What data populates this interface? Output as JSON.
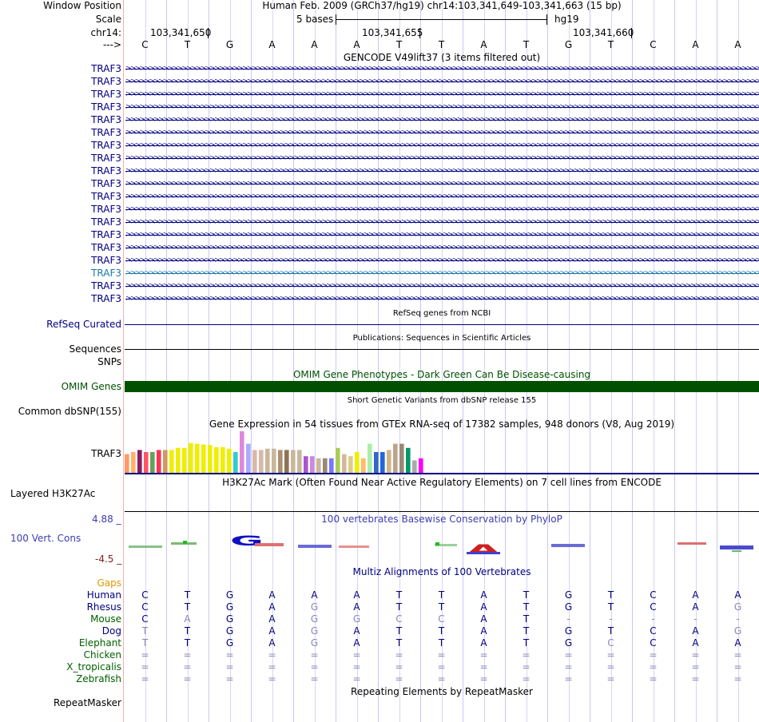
{
  "ruler": {
    "window_position_label": "Window Position",
    "title": "Human Feb. 2009 (GRCh37/hg19)   chr14:103,341,649-103,341,663 (15 bp)",
    "scale_label": "Scale",
    "scale_text": "5 bases",
    "assembly": "hg19",
    "chrom_label": "chr14:",
    "position_ticks": [
      "103,341,650",
      "103,341,655",
      "103,341,660"
    ],
    "strand_label": "--->",
    "bases": [
      "C",
      "T",
      "G",
      "A",
      "A",
      "A",
      "T",
      "T",
      "A",
      "T",
      "G",
      "T",
      "C",
      "A",
      "A"
    ]
  },
  "gencode": {
    "title": "GENCODE V49lift37 (3 items filtered out)",
    "gene_label": "TRAF3",
    "row_count": 19,
    "highlight_row": 16,
    "color": "#000080",
    "highlight_color": "#1a79a8"
  },
  "refseq": {
    "title": "RefSeq genes from NCBI",
    "label": "RefSeq Curated",
    "color": "#000080"
  },
  "publications": {
    "title": "Publications: Sequences in Scientific Articles",
    "label": "Sequences"
  },
  "snps": {
    "label": "SNPs"
  },
  "omim": {
    "title": "OMIM Gene Phenotypes - Dark Green Can Be Disease-causing",
    "label": "OMIM Genes",
    "color": "#005000"
  },
  "dbsnp": {
    "title": "Short Genetic Variants from dbSNP release 155",
    "label": "Common dbSNP(155)"
  },
  "gtex": {
    "title": "Gene Expression in 54 tissues from GTEx RNA-seq of 17382 samples, 948 donors (V8, Aug 2019)",
    "label": "TRAF3",
    "bars": [
      {
        "v": 0.45,
        "c": "#ff9966"
      },
      {
        "v": 0.5,
        "c": "#ffb366"
      },
      {
        "v": 0.55,
        "c": "#8b1c62"
      },
      {
        "v": 0.5,
        "c": "#ff5566"
      },
      {
        "v": 0.5,
        "c": "#66a05a"
      },
      {
        "v": 0.55,
        "c": "#ff3355"
      },
      {
        "v": 0.55,
        "c": "#cd9b5e"
      },
      {
        "v": 0.55,
        "c": "#eeee00"
      },
      {
        "v": 0.6,
        "c": "#eeee00"
      },
      {
        "v": 0.6,
        "c": "#eeee00"
      },
      {
        "v": 0.72,
        "c": "#eeee00"
      },
      {
        "v": 0.7,
        "c": "#eeee00"
      },
      {
        "v": 0.68,
        "c": "#eeee00"
      },
      {
        "v": 0.67,
        "c": "#eeee00"
      },
      {
        "v": 0.62,
        "c": "#eeee00"
      },
      {
        "v": 0.62,
        "c": "#eeee00"
      },
      {
        "v": 0.58,
        "c": "#eeee00"
      },
      {
        "v": 0.5,
        "c": "#33cccc"
      },
      {
        "v": 1.0,
        "c": "#dd88dd"
      },
      {
        "v": 0.7,
        "c": "#aaaaff"
      },
      {
        "v": 0.55,
        "c": "#d9b8a8"
      },
      {
        "v": 0.55,
        "c": "#d9b8a8"
      },
      {
        "v": 0.58,
        "c": "#c9b79c"
      },
      {
        "v": 0.58,
        "c": "#c9b79c"
      },
      {
        "v": 0.55,
        "c": "#aa9070"
      },
      {
        "v": 0.55,
        "c": "#8b7355"
      },
      {
        "v": 0.55,
        "c": "#c9b79c"
      },
      {
        "v": 0.55,
        "c": "#c9b79c"
      },
      {
        "v": 0.4,
        "c": "#aa55cc"
      },
      {
        "v": 0.4,
        "c": "#cc88dd"
      },
      {
        "v": 0.35,
        "c": "#c8b89c"
      },
      {
        "v": 0.35,
        "c": "#998877"
      },
      {
        "v": 0.35,
        "c": "#7777ff"
      },
      {
        "v": 0.6,
        "c": "#aacc55"
      },
      {
        "v": 0.45,
        "c": "#d4b89c"
      },
      {
        "v": 0.4,
        "c": "#ddcc88"
      },
      {
        "v": 0.5,
        "c": "#eeee00"
      },
      {
        "v": 0.35,
        "c": "#ffbb66"
      },
      {
        "v": 0.7,
        "c": "#aaeeaa"
      },
      {
        "v": 0.5,
        "c": "#3366cc"
      },
      {
        "v": 0.5,
        "c": "#2266dd"
      },
      {
        "v": 0.55,
        "c": "#d2b48c"
      },
      {
        "v": 0.7,
        "c": "#bca48c"
      },
      {
        "v": 0.7,
        "c": "#998877"
      },
      {
        "v": 0.6,
        "c": "#009966"
      },
      {
        "v": 0.3,
        "c": "#aaaaaa"
      },
      {
        "v": 0.35,
        "c": "#ff00ff"
      }
    ]
  },
  "h3k27ac": {
    "title": "H3K27Ac Mark (Often Found Near Active Regulatory Elements) on 7 cell lines from ENCODE",
    "label": "Layered H3K27Ac"
  },
  "phylop": {
    "title": "100 vertebrates Basewise Conservation by PhyloP",
    "label": "100 Vert. Cons",
    "max_label": "4.88 _",
    "min_label": "-4.5 _",
    "title_color": "#3c3cb4",
    "max_color": "#3c3cb4",
    "min_color": "#802020"
  },
  "multiz": {
    "title": "Multiz Alignments of 100 Vertebrates",
    "title_color": "#000080",
    "gaps_label": "Gaps",
    "gaps_color": "#e69500",
    "species": [
      {
        "name": "Human",
        "color": "#000080",
        "bases": [
          "C",
          "T",
          "G",
          "A",
          "A",
          "A",
          "T",
          "T",
          "A",
          "T",
          "G",
          "T",
          "C",
          "A",
          "A"
        ]
      },
      {
        "name": "Rhesus",
        "color": "#000080",
        "bases": [
          "C",
          "T",
          "G",
          "A",
          "G",
          "A",
          "T",
          "T",
          "A",
          "T",
          "G",
          "T",
          "C",
          "A",
          "G"
        ]
      },
      {
        "name": "Mouse",
        "color": "#006000",
        "bases": [
          "C",
          "A",
          "G",
          "A",
          "G",
          "G",
          "C",
          "C",
          "A",
          "T",
          "-",
          "-",
          "-",
          "-",
          "-"
        ]
      },
      {
        "name": "Dog",
        "color": "#000080",
        "bases": [
          "T",
          "T",
          "G",
          "A",
          "G",
          "A",
          "T",
          "T",
          "A",
          "T",
          "G",
          "T",
          "C",
          "A",
          "G"
        ]
      },
      {
        "name": "Elephant",
        "color": "#006000",
        "bases": [
          "T",
          "T",
          "G",
          "A",
          "G",
          "A",
          "T",
          "T",
          "A",
          "T",
          "G",
          "C",
          "C",
          "A",
          "A"
        ]
      },
      {
        "name": "Chicken",
        "color": "#006000",
        "bases": [
          "=",
          "=",
          "=",
          "=",
          "=",
          "=",
          "=",
          "=",
          "=",
          "=",
          "=",
          "=",
          "=",
          "=",
          "="
        ]
      },
      {
        "name": "X_tropicalis",
        "color": "#006000",
        "bases": [
          "=",
          "=",
          "=",
          "=",
          "=",
          "=",
          "=",
          "=",
          "=",
          "=",
          "=",
          "=",
          "=",
          "=",
          "="
        ]
      },
      {
        "name": "Zebrafish",
        "color": "#006000",
        "bases": [
          "=",
          "=",
          "=",
          "=",
          "=",
          "=",
          "=",
          "=",
          "=",
          "=",
          "=",
          "=",
          "=",
          "=",
          "="
        ]
      }
    ]
  },
  "repeatmasker": {
    "title": "Repeating Elements by RepeatMasker",
    "label": "RepeatMasker"
  }
}
